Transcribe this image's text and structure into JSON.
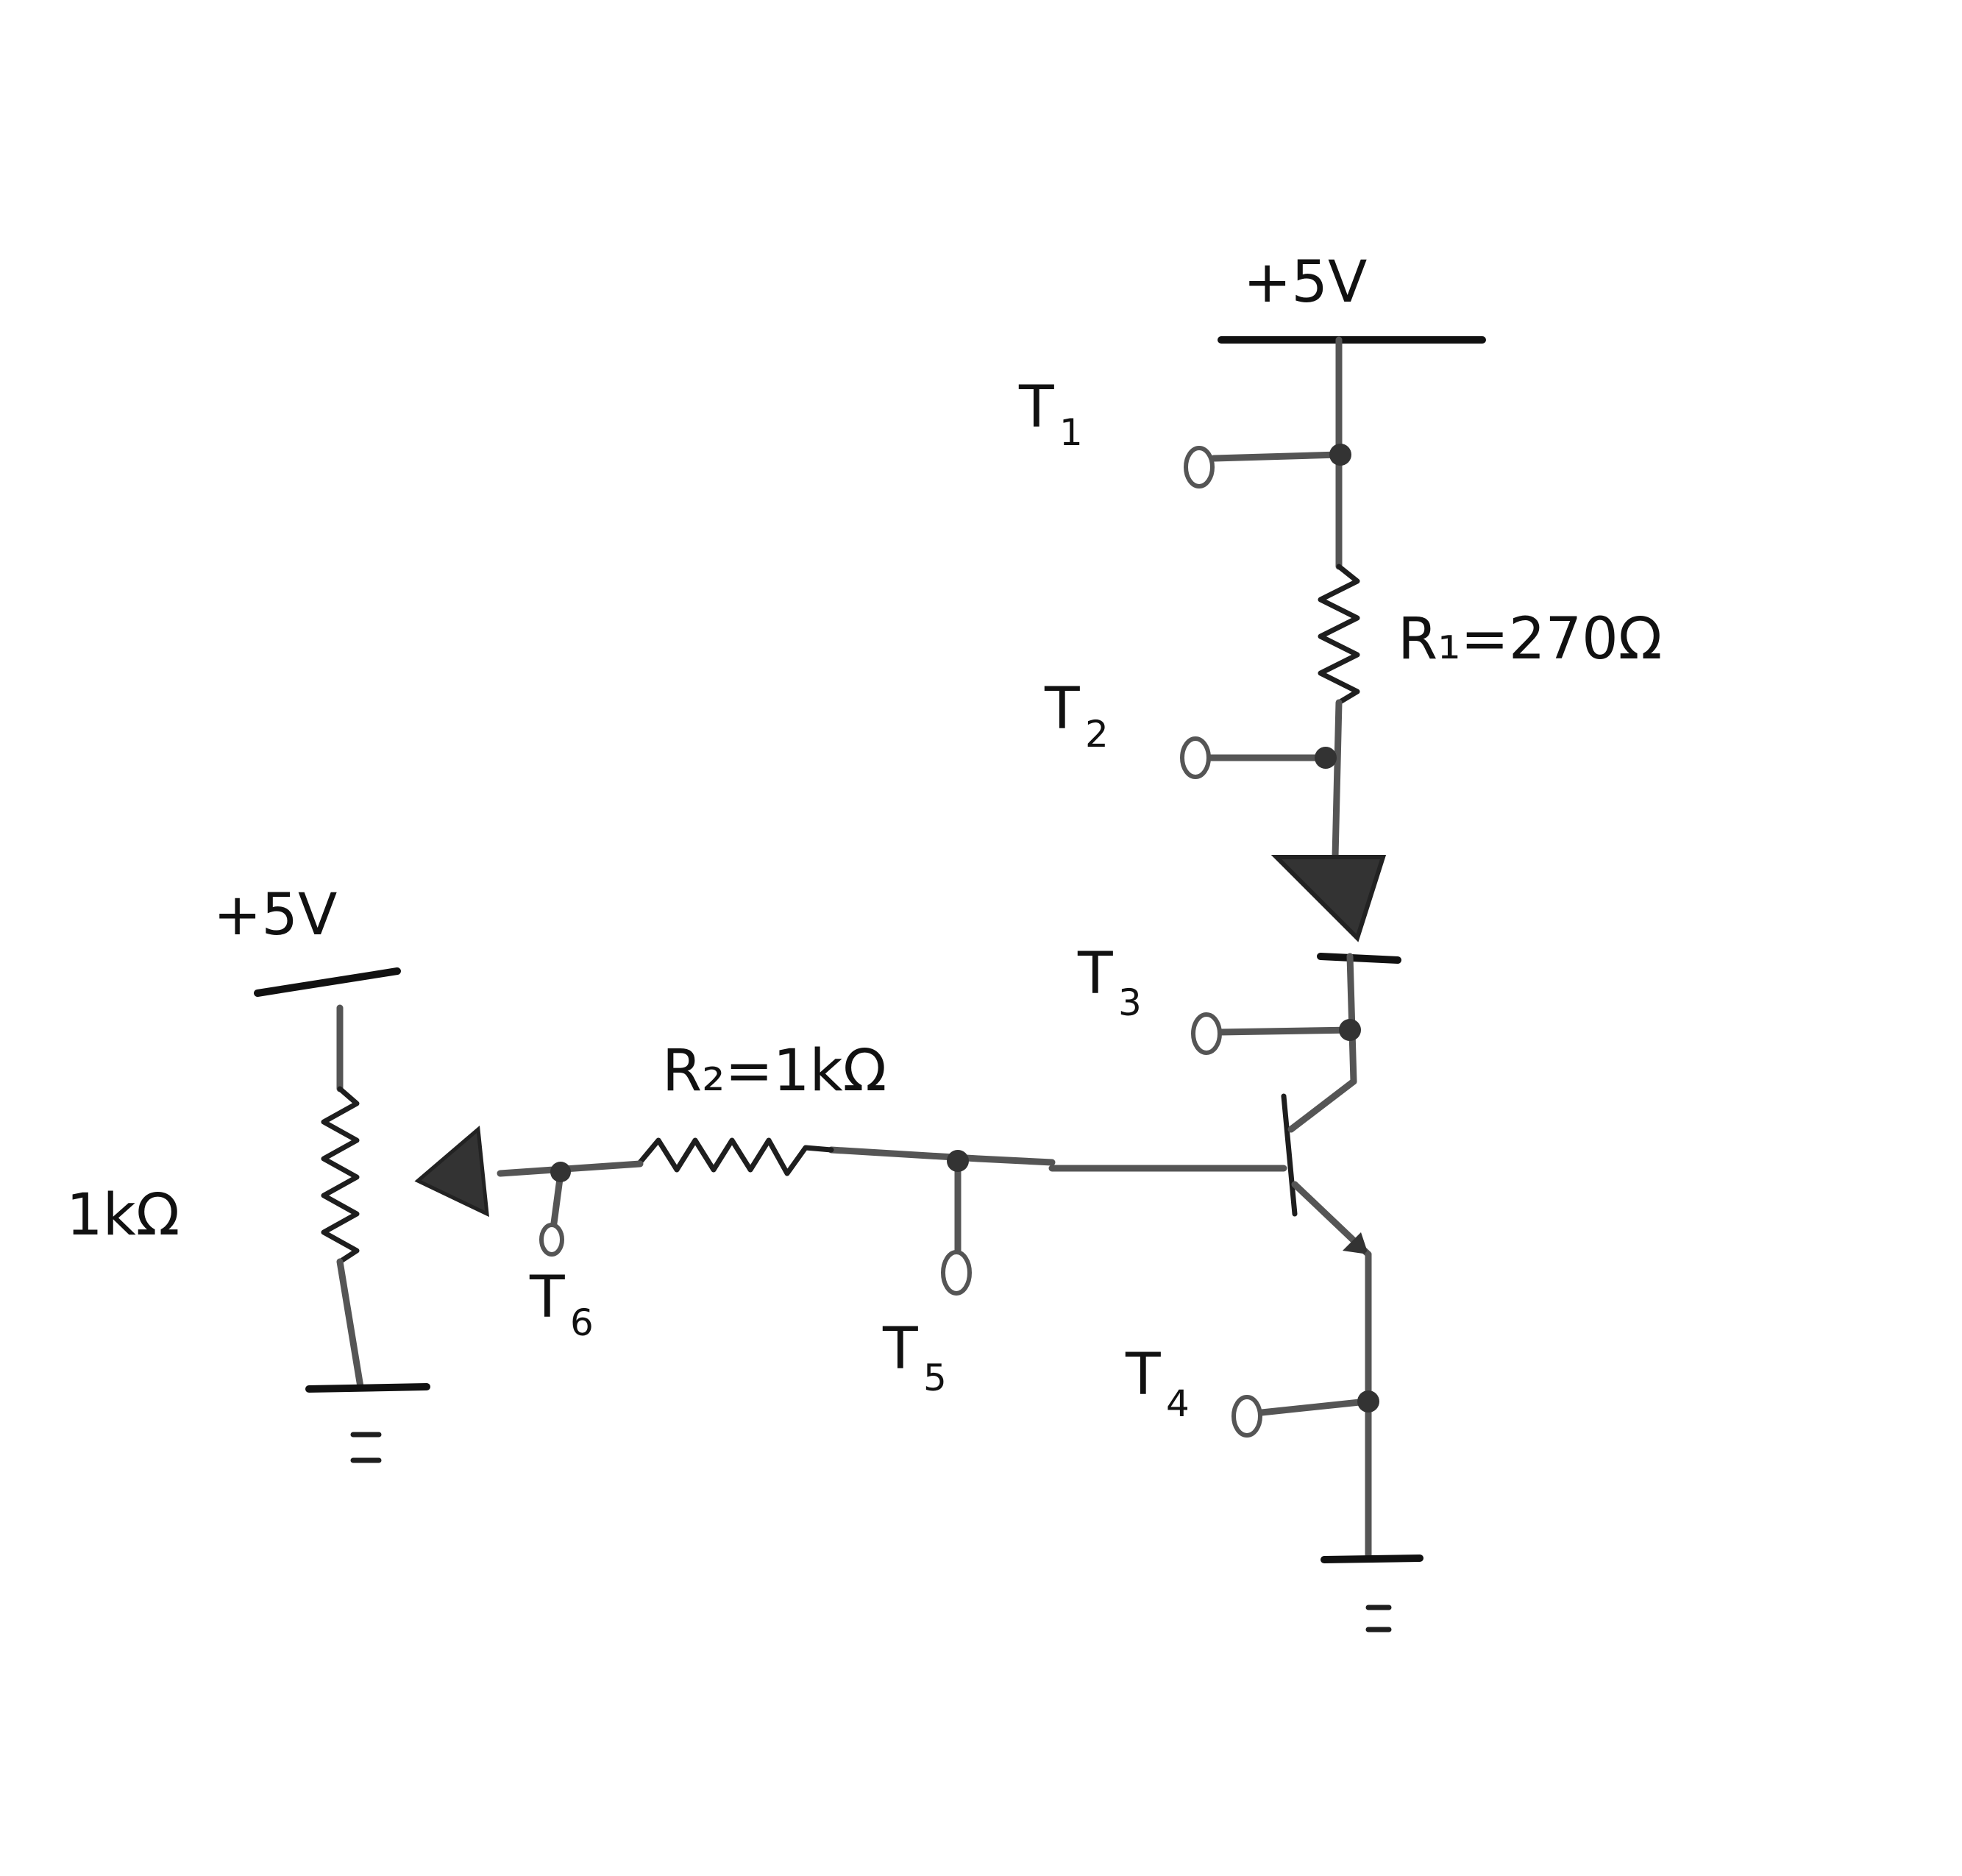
{
  "supplies": {
    "vcc_right": "+5V",
    "vcc_left": "+5V"
  },
  "resistors": {
    "r1": "R₁=270Ω",
    "r2": "R₂=1kΩ",
    "pot": "1kΩ"
  },
  "test_points": [
    {
      "letter": "T",
      "sub": "1"
    },
    {
      "letter": "T",
      "sub": "2"
    },
    {
      "letter": "T",
      "sub": "3"
    },
    {
      "letter": "T",
      "sub": "4"
    },
    {
      "letter": "T",
      "sub": "5"
    },
    {
      "letter": "T",
      "sub": "6"
    }
  ],
  "ground_symbol": "="
}
